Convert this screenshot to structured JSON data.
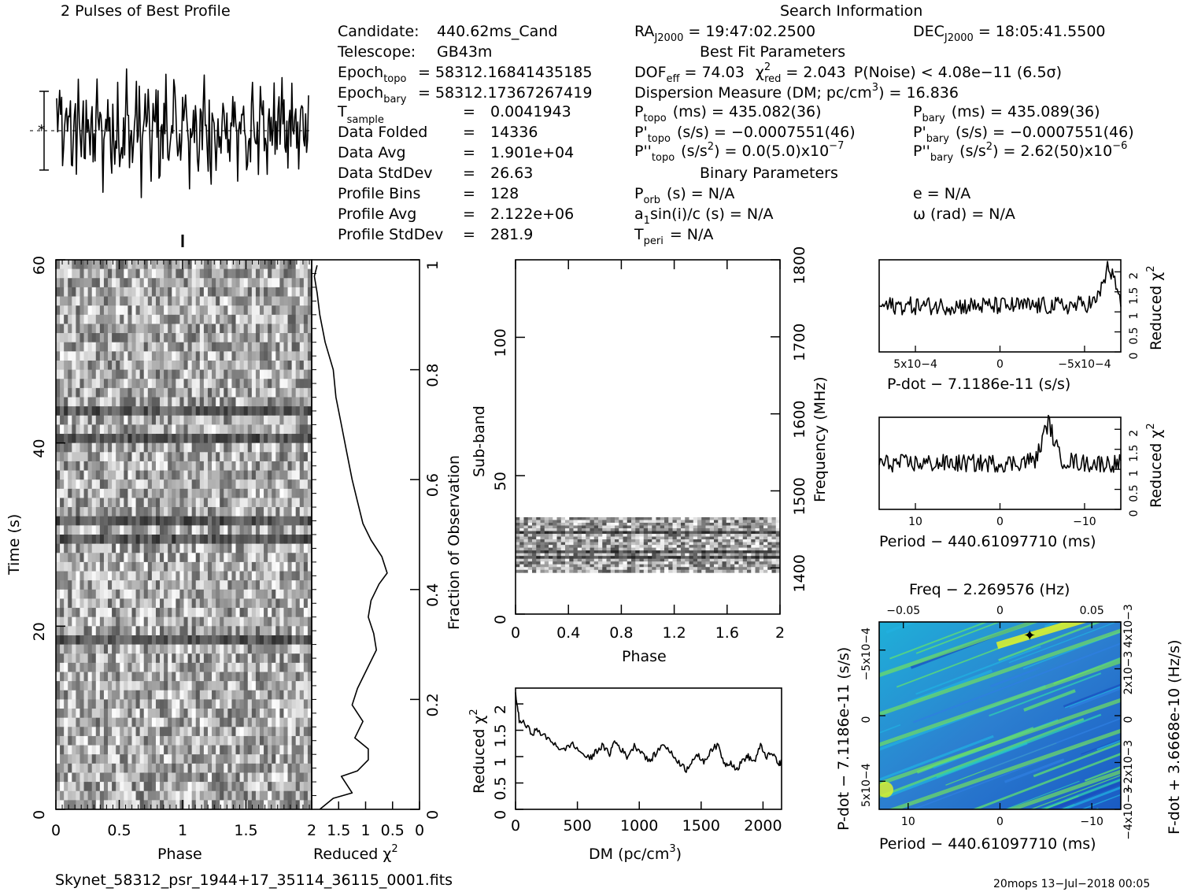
{
  "header": {
    "profile_title": "2 Pulses of Best Profile",
    "search_title": "Search Information",
    "best_fit_title": "Best Fit Parameters",
    "binary_title": "Binary Parameters",
    "left_block": [
      [
        "Candidate:",
        "440.62ms_Cand"
      ],
      [
        "Telescope:",
        "GB43m"
      ],
      [
        "Epoch_topo",
        "= 58312.16841435185"
      ],
      [
        "Epoch_bary",
        "= 58312.17367267419"
      ],
      [
        "T_sample",
        "=",
        "0.0041943"
      ],
      [
        "Data Folded",
        "=",
        "14336"
      ],
      [
        "Data Avg",
        "=",
        "1.901e+04"
      ],
      [
        "Data StdDev",
        "=",
        "26.63"
      ],
      [
        "Profile Bins",
        "=",
        "128"
      ],
      [
        "Profile Avg",
        "=",
        "2.122e+06"
      ],
      [
        "Profile StdDev",
        "=",
        "281.9"
      ]
    ],
    "ra": "= 19:47:02.2500",
    "dec": "= 18:05:41.5500",
    "dof_line": "DOF",
    "dof_value": "= 74.03",
    "chi_value": "= 2.043",
    "pnoise": "P(Noise) < 4.08e−11   (6.5σ)",
    "dm_line": "Dispersion Measure (DM; pc/cm",
    "dm_value": ") = 16.836",
    "ptopo": "(ms) =  435.082(36)",
    "pbary": "(ms) =  435.089(36)",
    "pdtopo": "(s/s) = −0.0007551(46)",
    "pdbary": "(s/s) = −0.0007551(46)",
    "pddtopo": ") = 0.0(5.0)x10",
    "pddtopo_exp": "−7",
    "pddbary": ") =  2.62(50)x10",
    "pddbary_exp": "−6",
    "porb": "(s) = N/A",
    "asini": "sin(i)/c (s) = N/A",
    "tperi": "= N/A",
    "ecc": "e = N/A",
    "omega": "ω (rad) = N/A"
  },
  "footer": {
    "filename": "Skynet_58312_psr_1944+17_35114_36115_0001.fits",
    "stamp": "20mops  13−Jul−2018 00:05"
  },
  "chart_data": [
    {
      "id": "time_phase",
      "type": "heatmap",
      "xlabel": "Phase",
      "ylabel": "Time (s)",
      "right_label": "Fraction of Observation",
      "xlim": [
        0,
        2
      ],
      "ylim": [
        0,
        60
      ],
      "x_ticks": [
        "0",
        "0.5",
        "1",
        "1.5"
      ],
      "y_ticks": [
        "0",
        "20",
        "40",
        "60"
      ],
      "right_ticks": [
        "0",
        "0.2",
        "0.4",
        "0.6",
        "0.8",
        "1"
      ],
      "colormap": "grayscale"
    },
    {
      "id": "time_chi2",
      "type": "line",
      "xlabel": "Reduced χ2",
      "x_ticks": [
        "2",
        "1.5",
        "1",
        "0.5",
        "0"
      ],
      "xlim": [
        2,
        0
      ],
      "ylim": [
        0,
        1
      ],
      "points": [
        [
          1.85,
          0.0
        ],
        [
          1.6,
          0.02
        ],
        [
          1.25,
          0.03
        ],
        [
          1.45,
          0.06
        ],
        [
          1.15,
          0.07
        ],
        [
          0.95,
          0.09
        ],
        [
          0.95,
          0.11
        ],
        [
          1.2,
          0.13
        ],
        [
          1.05,
          0.16
        ],
        [
          1.25,
          0.19
        ],
        [
          1.15,
          0.22
        ],
        [
          0.95,
          0.26
        ],
        [
          0.8,
          0.29
        ],
        [
          0.85,
          0.32
        ],
        [
          0.95,
          0.35
        ],
        [
          0.9,
          0.38
        ],
        [
          0.75,
          0.41
        ],
        [
          0.6,
          0.43
        ],
        [
          0.7,
          0.46
        ],
        [
          0.9,
          0.49
        ],
        [
          1.05,
          0.52
        ],
        [
          1.15,
          0.56
        ],
        [
          1.25,
          0.6
        ],
        [
          1.35,
          0.65
        ],
        [
          1.45,
          0.7
        ],
        [
          1.55,
          0.75
        ],
        [
          1.6,
          0.8
        ],
        [
          1.75,
          0.85
        ],
        [
          1.85,
          0.9
        ],
        [
          1.9,
          0.94
        ],
        [
          1.95,
          0.97
        ],
        [
          1.9,
          0.99
        ]
      ]
    },
    {
      "id": "profile",
      "type": "line",
      "title": "2 Pulses of Best Profile",
      "xlim": [
        0,
        2
      ]
    },
    {
      "id": "subband_phase",
      "type": "heatmap",
      "xlabel": "Phase",
      "ylabel": "Sub-band",
      "right_label": "Frequency (MHz)",
      "xlim": [
        0,
        2
      ],
      "ylim": [
        0,
        128
      ],
      "x_ticks": [
        "0",
        "0.4",
        "0.8",
        "1.2",
        "1.6",
        "2"
      ],
      "y_ticks": [
        "0",
        "50",
        "100"
      ],
      "right_ticks": [
        "1400",
        "1500",
        "1600",
        "1700",
        "1800"
      ],
      "band_range": [
        15,
        35
      ],
      "colormap": "grayscale"
    },
    {
      "id": "dm_chi2",
      "type": "line",
      "xlabel": "DM (pc/cm3)",
      "ylabel": "Reduced χ2",
      "xlim": [
        0,
        2150
      ],
      "ylim": [
        0,
        2.3
      ],
      "x_ticks": [
        "0",
        "500",
        "1000",
        "1500",
        "2000"
      ],
      "y_ticks": [
        "0",
        "0.5",
        "1",
        "1.5",
        "2"
      ],
      "points": [
        [
          0,
          2.2
        ],
        [
          30,
          1.7
        ],
        [
          80,
          1.6
        ],
        [
          130,
          1.45
        ],
        [
          180,
          1.5
        ],
        [
          250,
          1.35
        ],
        [
          320,
          1.25
        ],
        [
          380,
          1.1
        ],
        [
          450,
          1.25
        ],
        [
          520,
          1.1
        ],
        [
          600,
          0.95
        ],
        [
          650,
          1.1
        ],
        [
          700,
          1.2
        ],
        [
          760,
          1.05
        ],
        [
          800,
          1.3
        ],
        [
          850,
          1.15
        ],
        [
          900,
          1.0
        ],
        [
          960,
          1.2
        ],
        [
          1020,
          1.1
        ],
        [
          1080,
          0.9
        ],
        [
          1130,
          1.05
        ],
        [
          1200,
          1.25
        ],
        [
          1260,
          1.05
        ],
        [
          1320,
          0.9
        ],
        [
          1380,
          0.75
        ],
        [
          1430,
          0.95
        ],
        [
          1480,
          1.0
        ],
        [
          1530,
          0.9
        ],
        [
          1580,
          1.15
        ],
        [
          1640,
          1.2
        ],
        [
          1690,
          0.85
        ],
        [
          1740,
          0.9
        ],
        [
          1790,
          0.75
        ],
        [
          1840,
          0.95
        ],
        [
          1880,
          1.0
        ],
        [
          1930,
          0.9
        ],
        [
          1980,
          1.2
        ],
        [
          2030,
          1.0
        ],
        [
          2080,
          1.05
        ],
        [
          2130,
          0.85
        ],
        [
          2150,
          0.9
        ]
      ]
    },
    {
      "id": "pdot_chi2",
      "type": "line",
      "xlabel": "P-dot − 7.1186e-11 (s/s)",
      "ylabel": "Reduced χ2",
      "x_ticks": [
        "5x10−4",
        "0",
        "−5x10−4"
      ],
      "y_ticks": [
        "0",
        "0.5",
        "1",
        "1.5",
        "2"
      ],
      "ylim": [
        0,
        2.3
      ],
      "noise_mean": 1.15,
      "peak": [
        0.95,
        2.0
      ]
    },
    {
      "id": "period_chi2",
      "type": "line",
      "xlabel": "Period − 440.61097710 (ms)",
      "ylabel": "Reduced χ2",
      "x_ticks": [
        "10",
        "0",
        "−10"
      ],
      "y_ticks": [
        "0",
        "0.5",
        "1",
        "1.5",
        "2"
      ],
      "ylim": [
        0,
        2.3
      ],
      "noise_mean": 1.15,
      "peak": [
        0.7,
        2.05
      ]
    },
    {
      "id": "p_pdot",
      "type": "heatmap",
      "title": "Freq − 2.269576 (Hz)",
      "xlabel": "Period − 440.61097710 (ms)",
      "ylabel": "P-dot − 7.1186e-11 (s/s)",
      "right_label": "F-dot + 3.6668e-10 (Hz/s)",
      "x_ticks": [
        "10",
        "0",
        "−10"
      ],
      "top_ticks": [
        "−0.05",
        "0",
        "0.05"
      ],
      "y_ticks": [
        "5x10−4",
        "0",
        "−5x10−4"
      ],
      "right_ticks": [
        "−4x10−3",
        "−2x10−3",
        "0",
        "2x10−3",
        "4x10−3"
      ],
      "colormap": "jet",
      "best_marker": [
        0.62,
        0.96
      ]
    }
  ]
}
